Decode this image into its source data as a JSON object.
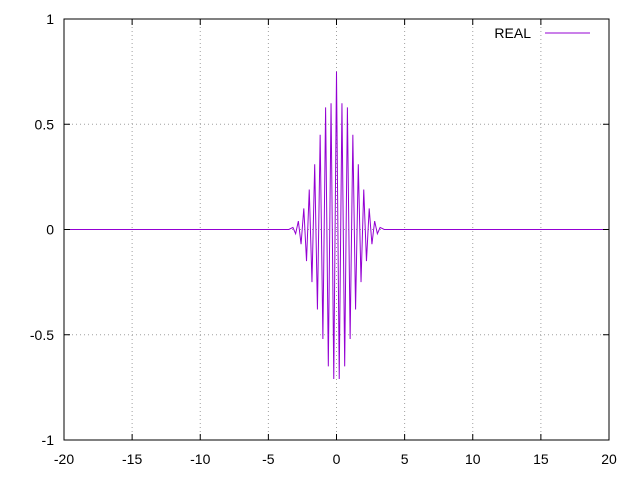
{
  "chart_data": {
    "type": "line",
    "title": "",
    "xlabel": "",
    "ylabel": "",
    "xlim": [
      -20,
      20
    ],
    "ylim": [
      -1,
      1
    ],
    "xticks": [
      -20,
      -15,
      -10,
      -5,
      0,
      5,
      10,
      15,
      20
    ],
    "yticks": [
      -1,
      -0.5,
      0,
      0.5,
      1
    ],
    "xtick_labels": [
      "-20",
      "-15",
      "-10",
      "-5",
      "0",
      "5",
      "10",
      "15",
      "20"
    ],
    "ytick_labels": [
      "-1",
      "-0.5",
      "0",
      "0.5",
      "1"
    ],
    "grid": true,
    "legend_position": "top-right",
    "series": [
      {
        "name": "REAL",
        "color": "#9400d3",
        "x": [
          -20,
          -3.5,
          -3.2,
          -3.0,
          -2.8,
          -2.6,
          -2.4,
          -2.2,
          -2.0,
          -1.8,
          -1.6,
          -1.4,
          -1.2,
          -1.0,
          -0.8,
          -0.6,
          -0.4,
          -0.2,
          0.0,
          0.2,
          0.4,
          0.6,
          0.8,
          1.0,
          1.2,
          1.4,
          1.6,
          1.8,
          2.0,
          2.2,
          2.4,
          2.6,
          2.8,
          3.0,
          3.2,
          3.5,
          20
        ],
        "y": [
          0,
          0,
          0.01,
          -0.02,
          0.04,
          -0.07,
          0.1,
          -0.15,
          0.19,
          -0.25,
          0.31,
          -0.38,
          0.45,
          -0.52,
          0.58,
          -0.65,
          0.6,
          -0.71,
          0.75,
          -0.71,
          0.6,
          -0.65,
          0.58,
          -0.52,
          0.45,
          -0.38,
          0.31,
          -0.25,
          0.19,
          -0.15,
          0.1,
          -0.07,
          0.04,
          -0.02,
          0.01,
          0,
          0
        ]
      }
    ]
  }
}
